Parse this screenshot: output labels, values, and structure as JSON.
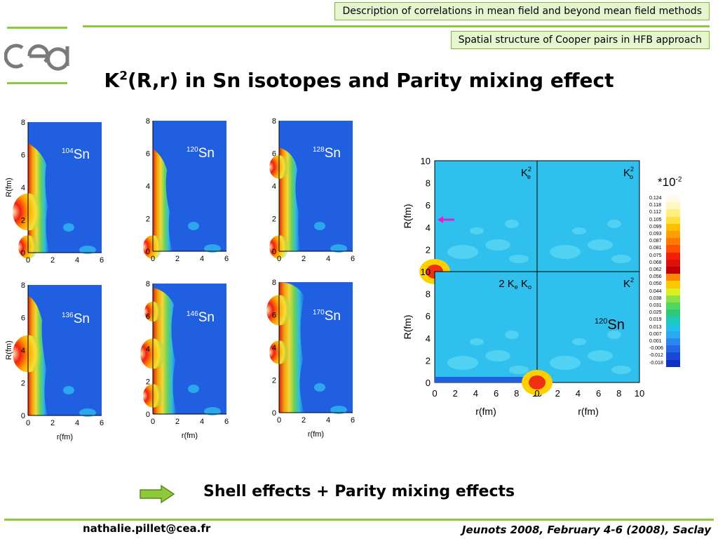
{
  "header": {
    "top_box": "Description of correlations in mean field and beyond mean field methods",
    "sub_box": "Spatial structure of Cooper pairs in HFB approach"
  },
  "title": {
    "main": "K",
    "sup": "2",
    "rest": "(R,r) in Sn isotopes and Parity mixing effect"
  },
  "small_plots": {
    "x_ticks": [
      "0",
      "2",
      "4",
      "6"
    ],
    "y_ticks": [
      "0",
      "2",
      "4",
      "6",
      "8"
    ],
    "ylabel": "R(fm)",
    "xlabel": "r(fm)",
    "isotopes": [
      {
        "mass": "104",
        "element": "Sn"
      },
      {
        "mass": "120",
        "element": "Sn"
      },
      {
        "mass": "128",
        "element": "Sn"
      },
      {
        "mass": "136",
        "element": "Sn"
      },
      {
        "mass": "146",
        "element": "Sn"
      },
      {
        "mass": "170",
        "element": "Sn"
      }
    ]
  },
  "big_plot": {
    "x_ticks": [
      "0",
      "2",
      "4",
      "6",
      "8",
      "10"
    ],
    "y_ticks": [
      "0",
      "2",
      "4",
      "6",
      "8",
      "10"
    ],
    "ylabel": "R(fm)",
    "xlabel": "r(fm)",
    "panel_labels": [
      {
        "base": "K",
        "sup": "2",
        "sub": "e"
      },
      {
        "base": "K",
        "sup": "2",
        "sub": "o"
      },
      {
        "text": "2 K",
        "sub1": "e",
        "mid": " K",
        "sub2": "o"
      },
      {
        "base": "K",
        "sup": "2"
      }
    ],
    "isotope": {
      "mass": "120",
      "element": "Sn"
    },
    "scale_factor": "*10",
    "scale_exp": "-2",
    "colorbar_values": [
      "0.124",
      "0.118",
      "0.112",
      "0.105",
      "0.099",
      "0.093",
      "0.087",
      "0.081",
      "0.075",
      "0.068",
      "0.062",
      "0.056",
      "0.050",
      "0.044",
      "0.038",
      "0.031",
      "0.025",
      "0.019",
      "0.013",
      "0.007",
      "0.001",
      "-0.006",
      "-0.012",
      "-0.018"
    ],
    "colorbar_colors": [
      "#fffbe8",
      "#fff7c0",
      "#fff080",
      "#ffe040",
      "#ffc000",
      "#ffa000",
      "#ff7a00",
      "#ff5000",
      "#f02000",
      "#e01010",
      "#c00000",
      "#ff8800",
      "#f8c800",
      "#d8f020",
      "#8ee048",
      "#50d860",
      "#30c878",
      "#20c8b8",
      "#20c0e8",
      "#30a8f0",
      "#2888f0",
      "#2068e8",
      "#1848d8",
      "#1030c0"
    ],
    "arrow_color": "#e020d0"
  },
  "conclusion": "Shell effects + Parity mixing effects",
  "footer": {
    "email": "nathalie.pillet@cea.fr",
    "conference": "Jeunots 2008, February 4-6 (2008), Saclay"
  }
}
